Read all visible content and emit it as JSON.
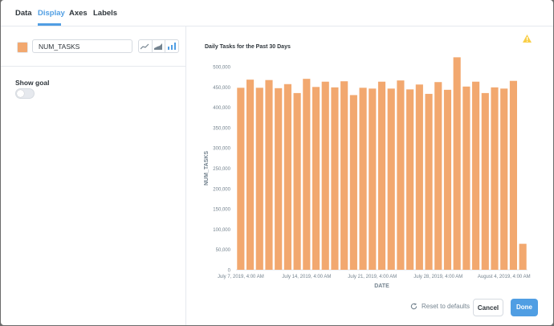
{
  "tabs": [
    "Data",
    "Display",
    "Axes",
    "Labels"
  ],
  "active_tab": "Display",
  "series": {
    "name": "NUM_TASKS",
    "color": "#f2a86f"
  },
  "goal": {
    "label": "Show goal",
    "enabled": false
  },
  "buttons": {
    "reset": "Reset to defaults",
    "cancel": "Cancel",
    "done": "Done"
  },
  "colors": {
    "accent": "#509ee3",
    "bar": "#f2a86f",
    "warning": "#f9cf48"
  },
  "chart_data": {
    "type": "bar",
    "title": "Daily Tasks for the Past 30 Days",
    "xlabel": "DATE",
    "ylabel": "NUM_TASKS",
    "ylim": [
      0,
      500000
    ],
    "yticks": [
      "0",
      "50,000",
      "100,000",
      "150,000",
      "200,000",
      "250,000",
      "300,000",
      "350,000",
      "400,000",
      "450,000",
      "500,000"
    ],
    "xticks": [
      {
        "label": "July 7, 2019, 4:00 AM",
        "index": 0
      },
      {
        "label": "July 14, 2019, 4:00 AM",
        "index": 7
      },
      {
        "label": "July 21, 2019, 4:00 AM",
        "index": 14
      },
      {
        "label": "July 28, 2019, 4:00 AM",
        "index": 21
      },
      {
        "label": "August 4, 2019, 4:00 AM",
        "index": 28
      }
    ],
    "values": [
      448000,
      468000,
      448000,
      467000,
      447000,
      457000,
      435000,
      470000,
      450000,
      463000,
      449000,
      464000,
      430000,
      448000,
      446000,
      463000,
      446000,
      466000,
      444000,
      456000,
      433000,
      462000,
      443000,
      523000,
      451000,
      463000,
      435000,
      449000,
      446000,
      465000,
      64000
    ]
  }
}
